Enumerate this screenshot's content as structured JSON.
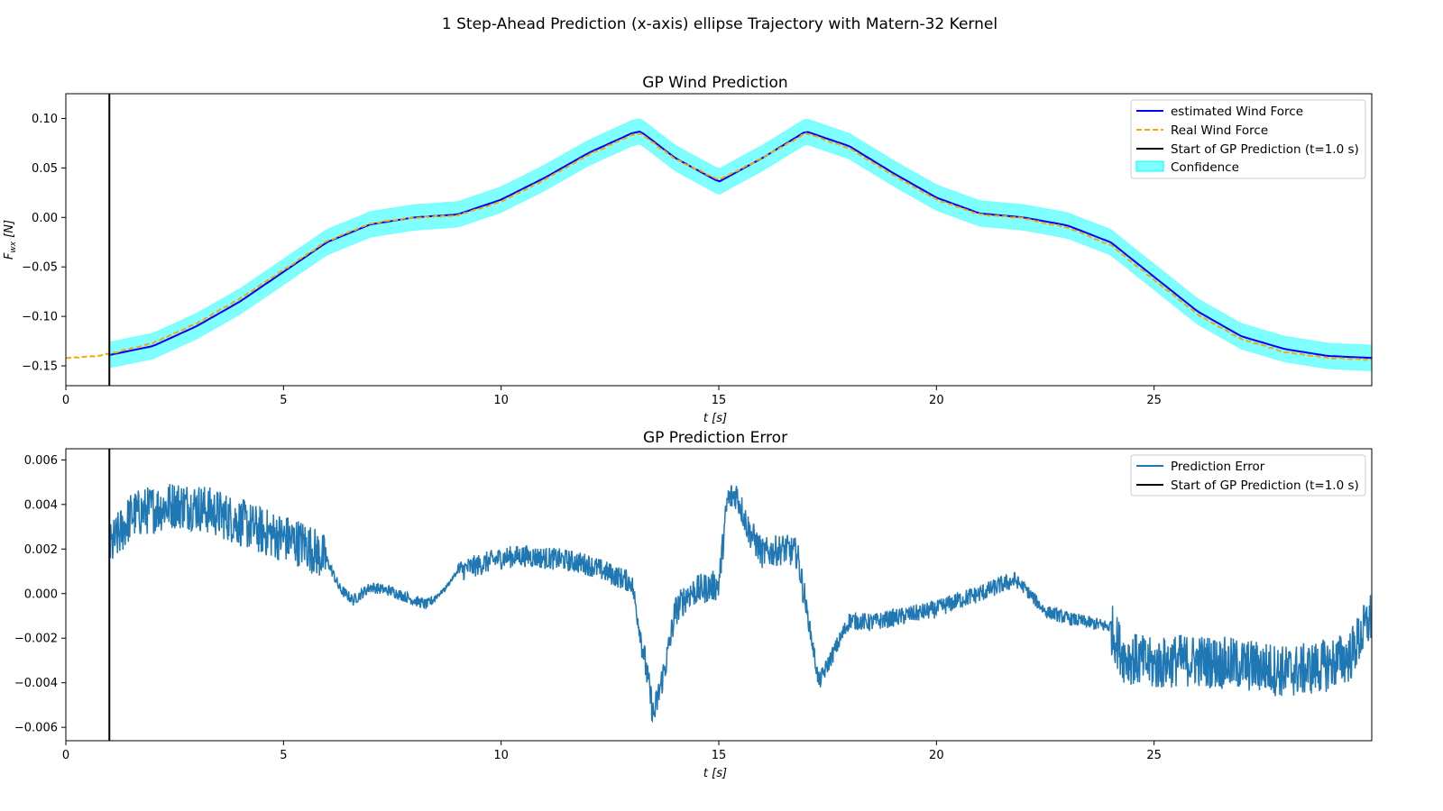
{
  "suptitle": "1 Step-Ahead Prediction (x-axis) ellipse Trajectory with Matern-32 Kernel",
  "colors": {
    "estimated": "#0000ff",
    "real": "#ffa500",
    "confidence": "#00ffff",
    "error": "#1f77b4",
    "start_line": "#000000"
  },
  "chart_data": [
    {
      "type": "line",
      "title": "GP Wind Prediction",
      "xlabel": "t [s]",
      "ylabel": "F_wx [N]",
      "xlim": [
        0,
        30
      ],
      "ylim": [
        -0.17,
        0.125
      ],
      "xticks": [
        0,
        5,
        10,
        15,
        20,
        25
      ],
      "yticks": [
        -0.15,
        -0.1,
        -0.05,
        0.0,
        0.05,
        0.1
      ],
      "ytick_labels": [
        "−0.15",
        "−0.10",
        "−0.05",
        "0.00",
        "0.05",
        "0.10"
      ],
      "legend_position": "upper right",
      "vline": {
        "x": 1.0,
        "name": "Start of GP Prediction (t=1.0 s)"
      },
      "band_halfwidth": 0.013,
      "series": [
        {
          "name": "estimated Wind Force",
          "style": "solid",
          "x": [
            1,
            2,
            3,
            4,
            5,
            6,
            7,
            8,
            9,
            10,
            11,
            12,
            13,
            13.2,
            14,
            15,
            16,
            17,
            18,
            19,
            20,
            21,
            22,
            23,
            24,
            25,
            26,
            27,
            28,
            29,
            30
          ],
          "y": [
            -0.139,
            -0.13,
            -0.11,
            -0.085,
            -0.055,
            -0.025,
            -0.007,
            0.0,
            0.003,
            0.018,
            0.04,
            0.065,
            0.085,
            0.087,
            0.06,
            0.036,
            0.06,
            0.087,
            0.072,
            0.045,
            0.02,
            0.004,
            0.0,
            -0.008,
            -0.025,
            -0.06,
            -0.095,
            -0.12,
            -0.133,
            -0.14,
            -0.142
          ]
        },
        {
          "name": "Real Wind Force",
          "style": "dashed",
          "x": [
            0,
            0.5,
            1,
            2,
            3,
            4,
            5,
            6,
            7,
            8,
            9,
            10,
            11,
            12,
            13,
            13.2,
            14,
            15,
            16,
            17,
            18,
            19,
            20,
            21,
            22,
            23,
            24,
            25,
            26,
            27,
            28,
            29,
            30
          ],
          "y": [
            -0.142,
            -0.141,
            -0.138,
            -0.127,
            -0.107,
            -0.082,
            -0.053,
            -0.024,
            -0.006,
            0.0,
            0.002,
            0.016,
            0.038,
            0.063,
            0.083,
            0.085,
            0.059,
            0.038,
            0.06,
            0.085,
            0.07,
            0.043,
            0.018,
            0.003,
            -0.001,
            -0.01,
            -0.028,
            -0.063,
            -0.098,
            -0.123,
            -0.136,
            -0.142,
            -0.144
          ]
        },
        {
          "name": "Confidence",
          "style": "band"
        }
      ]
    },
    {
      "type": "line",
      "title": "GP Prediction Error",
      "xlabel": "t [s]",
      "ylabel": "",
      "xlim": [
        0,
        30
      ],
      "ylim": [
        -0.0066,
        0.0065
      ],
      "xticks": [
        0,
        5,
        10,
        15,
        20,
        25
      ],
      "yticks": [
        -0.006,
        -0.004,
        -0.002,
        0.0,
        0.002,
        0.004,
        0.006
      ],
      "ytick_labels": [
        "−0.006",
        "−0.004",
        "−0.002",
        "0.000",
        "0.002",
        "0.004",
        "0.006"
      ],
      "legend_position": "upper right",
      "vline": {
        "x": 1.0,
        "name": "Start of GP Prediction (t=1.0 s)"
      },
      "series": [
        {
          "name": "Prediction Error",
          "x": [
            1,
            1.5,
            2,
            2.5,
            3,
            3.5,
            4,
            4.5,
            5,
            5.5,
            6,
            6.3,
            6.6,
            7,
            7.5,
            8,
            8.3,
            8.7,
            9,
            9.5,
            10,
            10.5,
            11,
            11.5,
            12,
            12.5,
            13,
            13.3,
            13.5,
            13.8,
            14,
            14.3,
            14.6,
            15,
            15.2,
            15.4,
            15.7,
            16,
            16.5,
            16.8,
            17,
            17.3,
            17.6,
            18,
            18.5,
            19,
            19.5,
            20,
            20.5,
            21,
            21.5,
            21.8,
            22,
            22.5,
            23,
            23.5,
            24,
            24.3,
            25,
            25.5,
            26,
            26.5,
            27,
            27.5,
            28,
            28.5,
            29,
            29.5,
            30
          ],
          "y": [
            0.002,
            0.0035,
            0.0038,
            0.004,
            0.0039,
            0.0036,
            0.0032,
            0.0028,
            0.0025,
            0.0022,
            0.0015,
            0.0002,
            -0.0003,
            0.0003,
            0.0001,
            -0.0003,
            -0.0005,
            0.0002,
            0.001,
            0.0013,
            0.0016,
            0.0017,
            0.0016,
            0.0015,
            0.0013,
            0.0009,
            0.0005,
            -0.003,
            -0.0055,
            -0.003,
            -0.0008,
            0.0,
            0.0002,
            0.0004,
            0.0042,
            0.0045,
            0.0028,
            0.0018,
            0.002,
            0.0018,
            -0.0005,
            -0.004,
            -0.0028,
            -0.0012,
            -0.0013,
            -0.0011,
            -0.0009,
            -0.0007,
            -0.0003,
            0.0,
            0.0004,
            0.0006,
            0.0003,
            -0.0008,
            -0.0011,
            -0.0013,
            -0.0015,
            -0.0028,
            -0.0032,
            -0.003,
            -0.003,
            -0.0031,
            -0.0032,
            -0.0033,
            -0.0035,
            -0.0034,
            -0.0032,
            -0.0028,
            -0.001
          ]
        }
      ]
    }
  ]
}
